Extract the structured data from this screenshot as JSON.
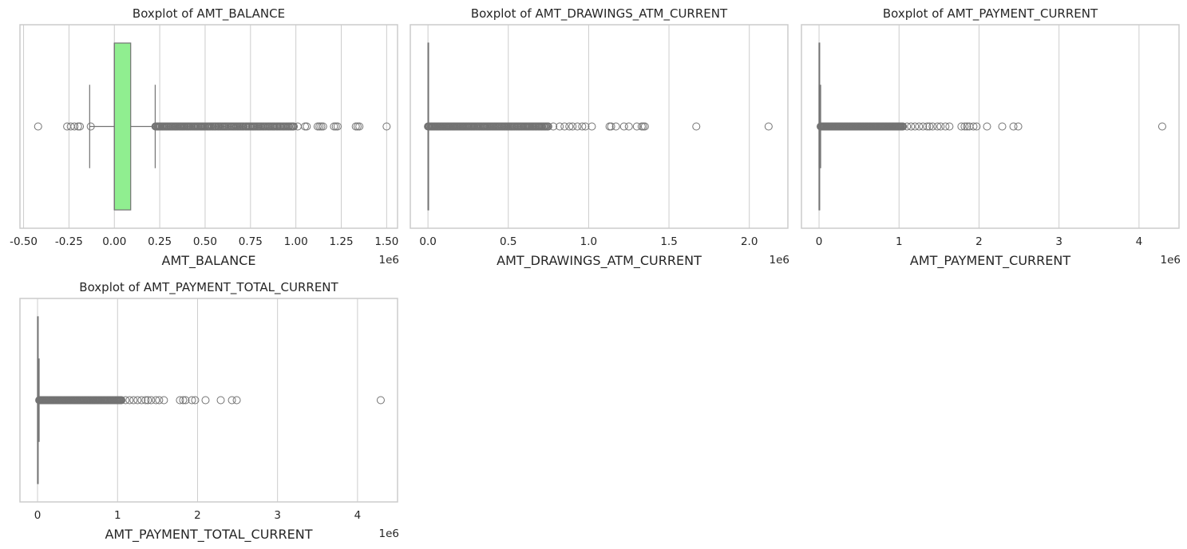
{
  "chart_data": [
    {
      "type": "boxplot",
      "title": "Boxplot of AMT_BALANCE",
      "xlabel": "AMT_BALANCE",
      "offset_text": "1e6",
      "xlim": [
        -0.52,
        1.56
      ],
      "xticks": [
        -0.5,
        -0.25,
        0.0,
        0.25,
        0.5,
        0.75,
        1.0,
        1.25,
        1.5
      ],
      "xtick_labels": [
        "-0.50",
        "-0.25",
        "0.00",
        "0.25",
        "0.50",
        "0.75",
        "1.00",
        "1.25",
        "1.50"
      ],
      "grid": true,
      "box_color": "#90ee90",
      "box": {
        "whisker_low": -0.136,
        "q1": 0.0,
        "median": 0.0,
        "q3": 0.09,
        "whisker_high": 0.225
      },
      "outlier_dense_range": [
        0.225,
        0.99
      ],
      "outliers": [
        -0.42,
        -0.26,
        -0.24,
        -0.22,
        -0.2,
        -0.19,
        -0.13,
        1.01,
        1.05,
        1.06,
        1.12,
        1.13,
        1.14,
        1.15,
        1.21,
        1.22,
        1.23,
        1.33,
        1.34,
        1.35,
        1.5
      ]
    },
    {
      "type": "boxplot",
      "title": "Boxplot of AMT_DRAWINGS_ATM_CURRENT",
      "xlabel": "AMT_DRAWINGS_ATM_CURRENT",
      "offset_text": "1e6",
      "xlim": [
        -0.11,
        2.24
      ],
      "xticks": [
        0.0,
        0.5,
        1.0,
        1.5,
        2.0
      ],
      "xtick_labels": [
        "0.0",
        "0.5",
        "1.0",
        "1.5",
        "2.0"
      ],
      "grid": true,
      "box_color": "#90ee90",
      "box": {
        "whisker_low": 0.0,
        "q1": 0.0,
        "median": 0.0,
        "q3": 0.0,
        "whisker_high": 0.0
      },
      "outlier_dense_range": [
        0.0,
        0.75
      ],
      "outliers": [
        0.78,
        0.82,
        0.85,
        0.88,
        0.9,
        0.93,
        0.96,
        0.98,
        1.02,
        1.13,
        1.14,
        1.17,
        1.22,
        1.25,
        1.3,
        1.33,
        1.34,
        1.35,
        1.67,
        2.12
      ]
    },
    {
      "type": "boxplot",
      "title": "Boxplot of AMT_PAYMENT_CURRENT",
      "xlabel": "AMT_PAYMENT_CURRENT",
      "offset_text": "1e6",
      "xlim": [
        -0.22,
        4.5
      ],
      "xticks": [
        0,
        1,
        2,
        3,
        4
      ],
      "xtick_labels": [
        "0",
        "1",
        "2",
        "3",
        "4"
      ],
      "grid": true,
      "box_color": "#90ee90",
      "box": {
        "whisker_low": 0.0,
        "q1": 0.0,
        "median": 0.0,
        "q3": 0.0,
        "whisker_high": 0.02
      },
      "outlier_dense_range": [
        0.02,
        1.05
      ],
      "outliers": [
        1.1,
        1.15,
        1.2,
        1.25,
        1.3,
        1.35,
        1.38,
        1.42,
        1.48,
        1.52,
        1.58,
        1.63,
        1.78,
        1.82,
        1.85,
        1.88,
        1.93,
        1.97,
        2.1,
        2.29,
        2.43,
        2.49,
        4.29
      ]
    },
    {
      "type": "boxplot",
      "title": "Boxplot of AMT_PAYMENT_TOTAL_CURRENT",
      "xlabel": "AMT_PAYMENT_TOTAL_CURRENT",
      "offset_text": "1e6",
      "xlim": [
        -0.22,
        4.5
      ],
      "xticks": [
        0,
        1,
        2,
        3,
        4
      ],
      "xtick_labels": [
        "0",
        "1",
        "2",
        "3",
        "4"
      ],
      "grid": true,
      "box_color": "#90ee90",
      "box": {
        "whisker_low": 0.0,
        "q1": 0.0,
        "median": 0.0,
        "q3": 0.0,
        "whisker_high": 0.02
      },
      "outlier_dense_range": [
        0.02,
        1.05
      ],
      "outliers": [
        1.1,
        1.15,
        1.2,
        1.25,
        1.3,
        1.35,
        1.38,
        1.42,
        1.48,
        1.52,
        1.58,
        1.78,
        1.82,
        1.85,
        1.93,
        1.97,
        2.1,
        2.29,
        2.43,
        2.49,
        4.29
      ]
    }
  ]
}
